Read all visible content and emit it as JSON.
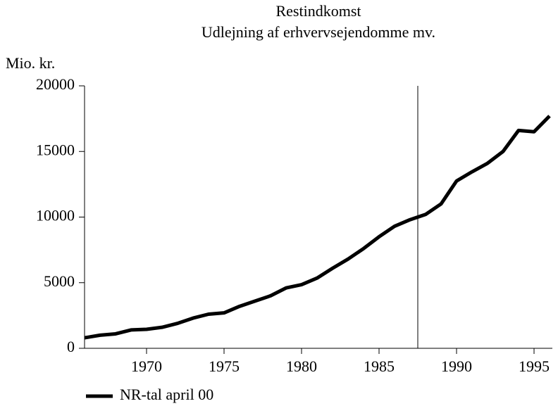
{
  "chart_data": {
    "type": "line",
    "title": "Restindkomst",
    "subtitle": "Udlejning af erhvervsejendomme mv.",
    "y_label": "Mio. kr.",
    "x": [
      1966,
      1967,
      1968,
      1969,
      1970,
      1971,
      1972,
      1973,
      1974,
      1975,
      1976,
      1977,
      1978,
      1979,
      1980,
      1981,
      1982,
      1983,
      1984,
      1985,
      1986,
      1987,
      1988,
      1989,
      1990,
      1991,
      1992,
      1993,
      1994,
      1995,
      1996
    ],
    "series": [
      {
        "name": "NR-tal april 00",
        "color": "#000000",
        "values": [
          800,
          1000,
          1100,
          1400,
          1450,
          1600,
          1900,
          2300,
          2600,
          2700,
          3200,
          3600,
          4000,
          4600,
          4850,
          5350,
          6100,
          6800,
          7600,
          8500,
          9300,
          9800,
          10200,
          11000,
          12750,
          13450,
          14100,
          15000,
          16600,
          16500,
          17700
        ]
      }
    ],
    "xlim": [
      1966,
      1996
    ],
    "xticks": [
      1970,
      1975,
      1980,
      1985,
      1990,
      1995
    ],
    "ylim": [
      0,
      20000
    ],
    "yticks": [
      0,
      5000,
      10000,
      15000,
      20000
    ],
    "vline": 1987.5,
    "legend": "bottom-left"
  }
}
